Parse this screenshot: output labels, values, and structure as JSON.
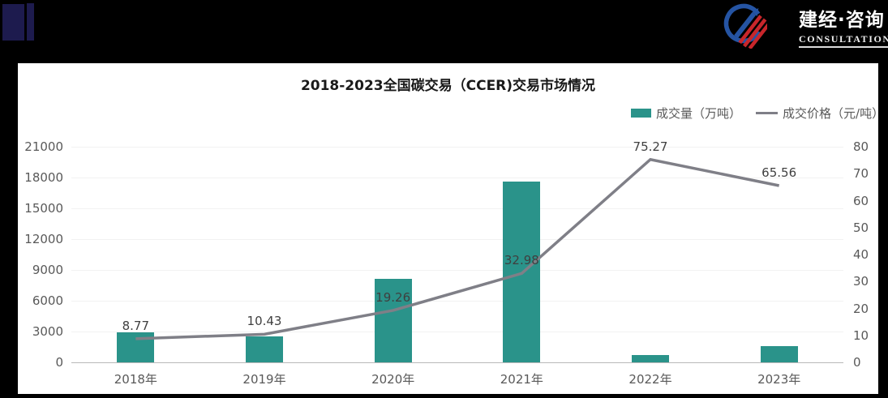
{
  "header": {
    "logo_text": "建经·咨询",
    "logo_subtext": "CONSULTATION"
  },
  "chart": {
    "title": "2018-2023全国碳交易（CCER)交易市场情况"
  },
  "chart_data": {
    "type": "combo-bar-line",
    "categories": [
      "2018年",
      "2019年",
      "2020年",
      "2021年",
      "2022年",
      "2023年"
    ],
    "series": [
      {
        "name": "成交量（万吨）",
        "type": "bar",
        "axis": "left",
        "color": "#2A938A",
        "values": [
          2900,
          2550,
          8100,
          17600,
          730,
          1550
        ]
      },
      {
        "name": "成交价格（元/吨）",
        "type": "line",
        "axis": "right",
        "color": "#7F7F87",
        "values": [
          8.77,
          10.43,
          19.26,
          32.98,
          75.27,
          65.56
        ],
        "data_labels": [
          "8.77",
          "10.43",
          "19.26",
          "32.98",
          "75.27",
          "65.56"
        ]
      }
    ],
    "left_axis": {
      "min": 0,
      "max": 21000,
      "step": 3000
    },
    "right_axis": {
      "min": 0,
      "max": 80,
      "step": 10
    },
    "grid": true,
    "legend_position": "top-right"
  },
  "colors": {
    "background": "#000000",
    "panel": "#FFFFFF",
    "bar": "#2A938A",
    "line": "#7F7F87",
    "axis_text": "#595959",
    "label_text": "#3F3F3F",
    "deco_mark": "#1D1B4E",
    "emblem_blue": "#2554A3",
    "emblem_red": "#C8262B"
  }
}
